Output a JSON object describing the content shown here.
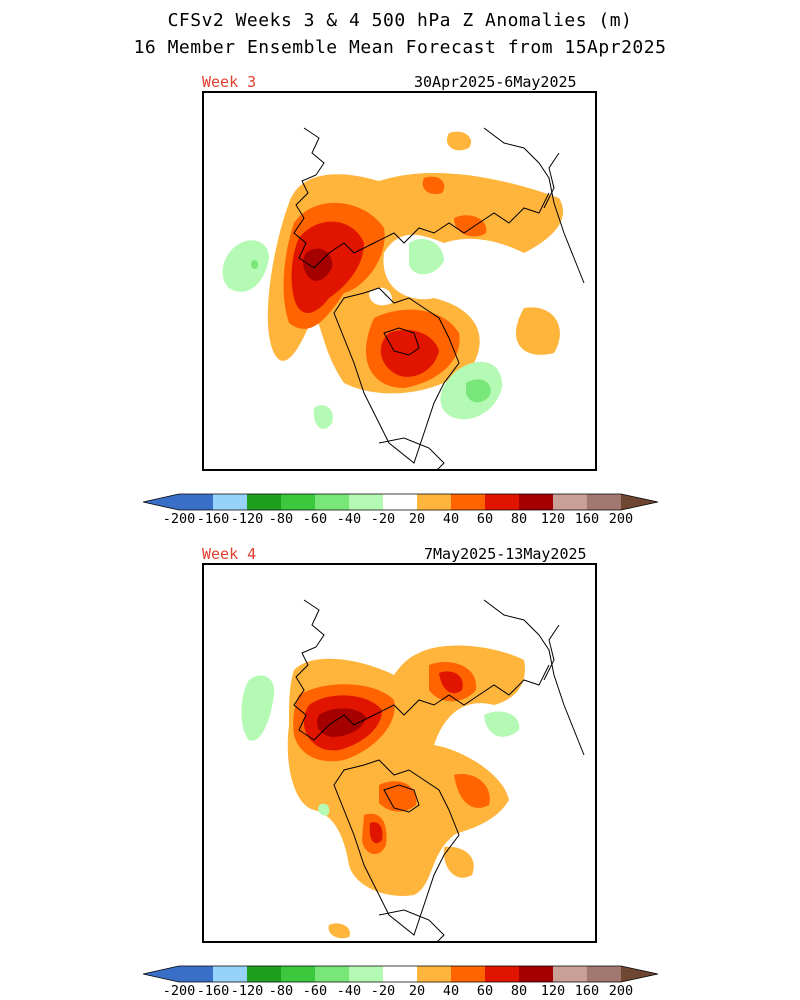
{
  "header": {
    "title_line1": "CFSv2 Weeks 3 & 4 500 hPa Z Anomalies (m)",
    "title_line2": "16 Member Ensemble Mean Forecast from 15Apr2025"
  },
  "panels": [
    {
      "label": "Week 3",
      "dates": "30Apr2025-6May2025"
    },
    {
      "label": "Week 4",
      "dates": "7May2025-13May2025"
    }
  ],
  "colorbar": {
    "tick_labels": [
      "-200",
      "-160",
      "-120",
      "-80",
      "-60",
      "-40",
      "-20",
      "20",
      "40",
      "60",
      "80",
      "120",
      "160",
      "200"
    ],
    "colors": {
      "lt_-160": "#3a6fc8",
      "-160_-120": "#4aa0f0",
      "-120_-80": "#96d2fa",
      "-80_-60": "#1ea01e",
      "-60_-40": "#3cc83c",
      "-40_-20": "#78e678",
      "-20_20": "#b4fab4",
      "neutral": "#ffffff",
      "20_40": "#ffb43c",
      "40_60": "#ff6400",
      "60_80": "#e11400",
      "80_120": "#a50000",
      "120_160": "#c8a096",
      "160_200": "#a07870",
      "gt_200": "#6e4632"
    }
  }
}
